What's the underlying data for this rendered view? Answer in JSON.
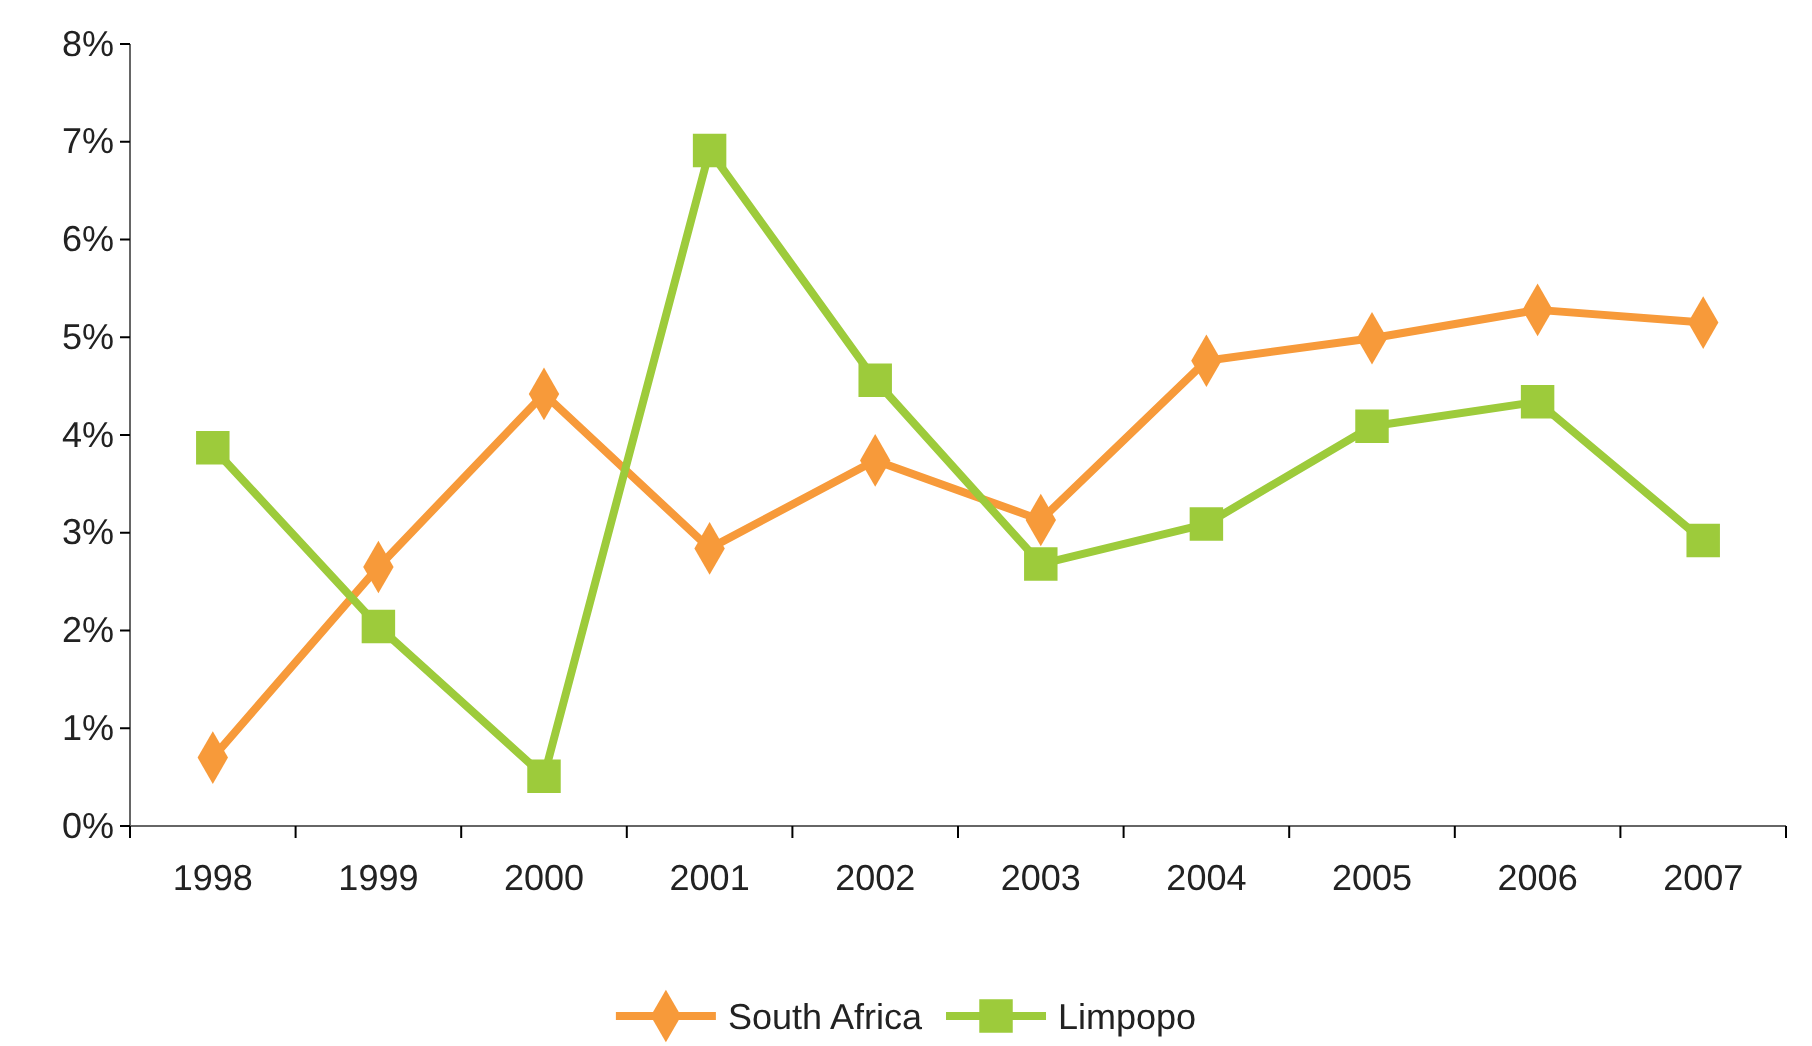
{
  "chart_data": {
    "type": "line",
    "categories": [
      "1998",
      "1999",
      "2000",
      "2001",
      "2002",
      "2003",
      "2004",
      "2005",
      "2006",
      "2007"
    ],
    "series": [
      {
        "name": "South Africa",
        "color": "#f79a3a",
        "marker": "diamond",
        "values": [
          0.7,
          2.65,
          4.42,
          2.84,
          3.74,
          3.13,
          4.76,
          4.99,
          5.28,
          5.15
        ]
      },
      {
        "name": "Limpopo",
        "color": "#9dcb3b",
        "marker": "square",
        "values": [
          3.87,
          2.04,
          0.51,
          6.91,
          4.56,
          2.68,
          3.09,
          4.09,
          4.34,
          2.92
        ]
      }
    ],
    "ylim": [
      0,
      8
    ],
    "yticks": [
      {
        "value": 0,
        "label": "0%"
      },
      {
        "value": 1,
        "label": "1%"
      },
      {
        "value": 2,
        "label": "2%"
      },
      {
        "value": 3,
        "label": "3%"
      },
      {
        "value": 4,
        "label": "4%"
      },
      {
        "value": 5,
        "label": "5%"
      },
      {
        "value": 6,
        "label": "6%"
      },
      {
        "value": 7,
        "label": "7%"
      },
      {
        "value": 8,
        "label": "8%"
      }
    ],
    "grid": false,
    "legend": "bottom",
    "line_style": "solid"
  }
}
